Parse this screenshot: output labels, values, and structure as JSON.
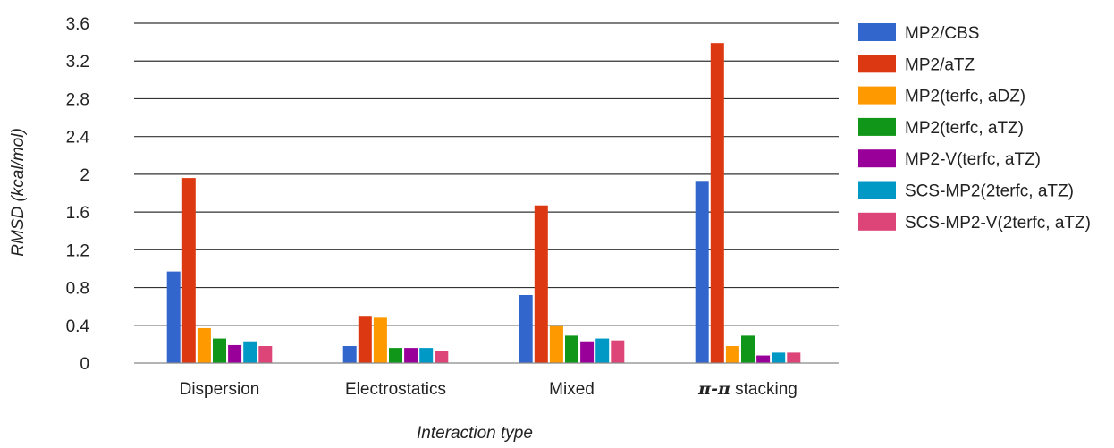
{
  "chart_data": {
    "type": "bar",
    "title": "",
    "xlabel": "Interaction type",
    "ylabel": "RMSD (kcal/mol)",
    "ylim": [
      0,
      3.6
    ],
    "yticks": [
      "0",
      "0.4",
      "0.8",
      "1.2",
      "1.6",
      "2",
      "2.4",
      "2.8",
      "3.2",
      "3.6"
    ],
    "grid": true,
    "legend_position": "right",
    "categories": [
      "Dispersion",
      "Electrostatics",
      "Mixed",
      "π-π stacking"
    ],
    "series": [
      {
        "name": "MP2/CBS",
        "color": "#3366cc",
        "values": [
          0.97,
          0.18,
          0.72,
          1.93
        ]
      },
      {
        "name": "MP2/aTZ",
        "color": "#dc3912",
        "values": [
          1.96,
          0.5,
          1.67,
          3.39
        ]
      },
      {
        "name": "MP2(terfc, aDZ)",
        "color": "#ff9900",
        "values": [
          0.37,
          0.48,
          0.39,
          0.18
        ]
      },
      {
        "name": "MP2(terfc, aTZ)",
        "color": "#109618",
        "values": [
          0.26,
          0.16,
          0.29,
          0.29
        ]
      },
      {
        "name": "MP2-V(terfc, aTZ)",
        "color": "#990099",
        "values": [
          0.19,
          0.16,
          0.23,
          0.08
        ]
      },
      {
        "name": "SCS-MP2(2terfc, aTZ)",
        "color": "#0099c6",
        "values": [
          0.23,
          0.16,
          0.26,
          0.11
        ]
      },
      {
        "name": "SCS-MP2-V(2terfc, aTZ)",
        "color": "#dd4477",
        "values": [
          0.18,
          0.13,
          0.24,
          0.11
        ]
      }
    ]
  }
}
